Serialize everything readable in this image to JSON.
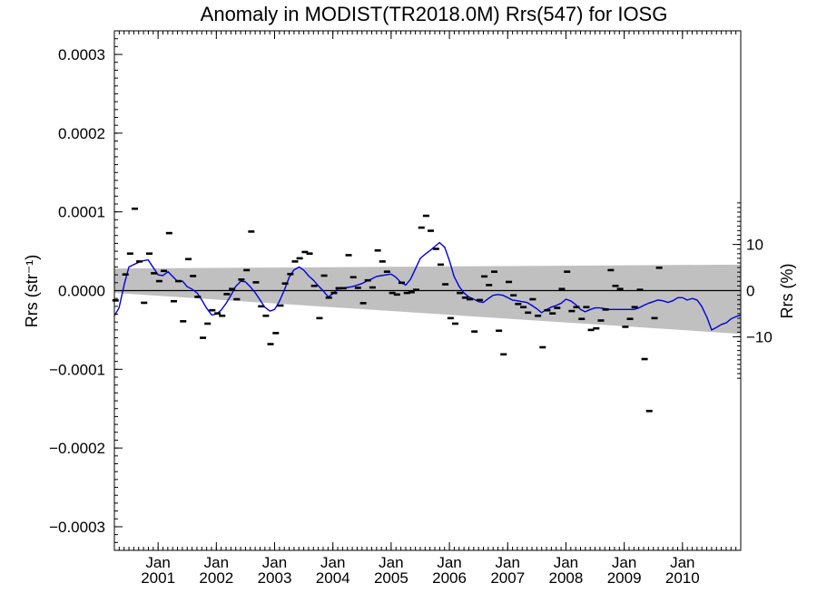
{
  "chart_data": {
    "type": "scatter",
    "title": "Anomaly in MODIST(TR2018.0M) Rrs(547) for IOSG",
    "ylabel_left": "Rrs (str⁻¹)",
    "ylabel_right": "Rrs (%)",
    "ylim": [
      -0.00033,
      0.00033
    ],
    "xlim": [
      2000.25,
      2011.0
    ],
    "grid": false,
    "yticks_left": [
      {
        "value": 0.0003,
        "label": "0.0003"
      },
      {
        "value": 0.0002,
        "label": "0.0002"
      },
      {
        "value": 0.0001,
        "label": "0.0001"
      },
      {
        "value": 0.0,
        "label": "0.0000"
      },
      {
        "value": -0.0001,
        "label": "−0.0001"
      },
      {
        "value": -0.0002,
        "label": "−0.0002"
      },
      {
        "value": -0.0003,
        "label": "−0.0003"
      }
    ],
    "yticks_right": [
      {
        "value": 10,
        "label": "10"
      },
      {
        "value": 0,
        "label": "0"
      },
      {
        "value": -10,
        "label": "−10"
      }
    ],
    "right_axis_scale_rrs_per_percent": 5.86e-06,
    "xticks": [
      {
        "value": 2001.0,
        "line1": "Jan",
        "line2": "2001"
      },
      {
        "value": 2002.0,
        "line1": "Jan",
        "line2": "2002"
      },
      {
        "value": 2003.0,
        "line1": "Jan",
        "line2": "2003"
      },
      {
        "value": 2004.0,
        "line1": "Jan",
        "line2": "2004"
      },
      {
        "value": 2005.0,
        "line1": "Jan",
        "line2": "2005"
      },
      {
        "value": 2006.0,
        "line1": "Jan",
        "line2": "2006"
      },
      {
        "value": 2007.0,
        "line1": "Jan",
        "line2": "2007"
      },
      {
        "value": 2008.0,
        "line1": "Jan",
        "line2": "2008"
      },
      {
        "value": 2009.0,
        "line1": "Jan",
        "line2": "2009"
      },
      {
        "value": 2010.0,
        "line1": "Jan",
        "line2": "2010"
      }
    ],
    "uncertainty_band": {
      "color": "#c0c0c0",
      "upper": [
        [
          2000.25,
          2.8e-05
        ],
        [
          2011.0,
          3.3e-05
        ]
      ],
      "lower": [
        [
          2000.25,
          -3e-06
        ],
        [
          2011.0,
          -5.5e-05
        ]
      ]
    },
    "series": [
      {
        "type": "points",
        "marker": "dash",
        "color": "#000000",
        "values": [
          [
            2000.27,
            -1.25e-05
          ],
          [
            2000.44,
            2.05e-05
          ],
          [
            2000.52,
            4.7e-05
          ],
          [
            2000.6,
            0.000104
          ],
          [
            2000.68,
            3.7e-05
          ],
          [
            2000.76,
            -1.55e-05
          ],
          [
            2000.85,
            4.7e-05
          ],
          [
            2000.93,
            2.2e-05
          ],
          [
            2001.02,
            1.2e-05
          ],
          [
            2001.1,
            2.5e-05
          ],
          [
            2001.19,
            7.3e-05
          ],
          [
            2001.27,
            -1.35e-05
          ],
          [
            2001.35,
            1.2e-05
          ],
          [
            2001.43,
            -3.9e-05
          ],
          [
            2001.52,
            4e-05
          ],
          [
            2001.6,
            1.85e-05
          ],
          [
            2001.68,
            -8e-06
          ],
          [
            2001.77,
            -6e-05
          ],
          [
            2001.85,
            -4.2e-05
          ],
          [
            2001.93,
            -2.5e-05
          ],
          [
            2002.02,
            -2.9e-05
          ],
          [
            2002.1,
            -3.2e-05
          ],
          [
            2002.18,
            -4.5e-06
          ],
          [
            2002.27,
            2e-06
          ],
          [
            2002.35,
            -1.1e-05
          ],
          [
            2002.43,
            1.4e-05
          ],
          [
            2002.52,
            2.6e-05
          ],
          [
            2002.6,
            7.5e-05
          ],
          [
            2002.68,
            1.05e-05
          ],
          [
            2002.77,
            -2e-05
          ],
          [
            2002.85,
            -3.2e-05
          ],
          [
            2002.93,
            -6.8e-05
          ],
          [
            2003.02,
            -5.4e-05
          ],
          [
            2003.1,
            -1.9e-05
          ],
          [
            2003.18,
            9e-06
          ],
          [
            2003.27,
            2.1e-05
          ],
          [
            2003.35,
            3.7e-05
          ],
          [
            2003.43,
            4.1e-05
          ],
          [
            2003.52,
            4.9e-05
          ],
          [
            2003.6,
            4.7e-05
          ],
          [
            2003.68,
            6e-06
          ],
          [
            2003.77,
            -3.5e-05
          ],
          [
            2003.85,
            1.9e-05
          ],
          [
            2003.93,
            -9e-06
          ],
          [
            2004.02,
            -3e-06
          ],
          [
            2004.1,
            3e-06
          ],
          [
            2004.18,
            3e-06
          ],
          [
            2004.27,
            4.5e-05
          ],
          [
            2004.35,
            1.7e-05
          ],
          [
            2004.43,
            3.5e-06
          ],
          [
            2004.52,
            -1.6e-05
          ],
          [
            2004.6,
            1.3e-05
          ],
          [
            2004.68,
            4e-06
          ],
          [
            2004.77,
            5.1e-05
          ],
          [
            2004.85,
            3.7e-05
          ],
          [
            2004.93,
            2.4e-05
          ],
          [
            2005.02,
            -3e-06
          ],
          [
            2005.1,
            -5e-06
          ],
          [
            2005.18,
            1e-05
          ],
          [
            2005.27,
            -3e-06
          ],
          [
            2005.35,
            -2e-06
          ],
          [
            2005.43,
            1e-06
          ],
          [
            2005.52,
            8e-05
          ],
          [
            2005.6,
            9.5e-05
          ],
          [
            2005.68,
            7.6e-05
          ],
          [
            2005.77,
            5.3e-05
          ],
          [
            2005.85,
            3.3e-05
          ],
          [
            2005.93,
            8e-06
          ],
          [
            2006.02,
            -3.5e-05
          ],
          [
            2006.1,
            -4.2e-05
          ],
          [
            2006.18,
            -3e-06
          ],
          [
            2006.27,
            -9e-06
          ],
          [
            2006.35,
            -1.1e-05
          ],
          [
            2006.43,
            -5.2e-05
          ],
          [
            2006.52,
            -1.2e-05
          ],
          [
            2006.6,
            1.8e-05
          ],
          [
            2006.68,
            7e-06
          ],
          [
            2006.77,
            2.4e-05
          ],
          [
            2006.85,
            -5.1e-05
          ],
          [
            2006.93,
            -8.1e-05
          ],
          [
            2007.02,
            1.1e-05
          ],
          [
            2007.1,
            -6e-06
          ],
          [
            2007.18,
            -1.7e-05
          ],
          [
            2007.27,
            -2.1e-05
          ],
          [
            2007.35,
            -2.8e-05
          ],
          [
            2007.43,
            -1.1e-05
          ],
          [
            2007.52,
            -3.2e-05
          ],
          [
            2007.6,
            -7.2e-05
          ],
          [
            2007.68,
            -2.5e-05
          ],
          [
            2007.77,
            -2.9e-05
          ],
          [
            2007.85,
            -2.2e-05
          ],
          [
            2007.93,
            2e-06
          ],
          [
            2008.02,
            2.4e-05
          ],
          [
            2008.1,
            -2.6e-05
          ],
          [
            2008.18,
            -2.1e-05
          ],
          [
            2008.27,
            -3.6e-05
          ],
          [
            2008.35,
            -2.1e-05
          ],
          [
            2008.43,
            -5e-05
          ],
          [
            2008.52,
            -4.8e-05
          ],
          [
            2008.6,
            -3.8e-05
          ],
          [
            2008.68,
            -2.4e-05
          ],
          [
            2008.77,
            2.6e-05
          ],
          [
            2008.85,
            6e-06
          ],
          [
            2008.93,
            2e-06
          ],
          [
            2009.02,
            -4.6e-05
          ],
          [
            2009.1,
            -3.6e-05
          ],
          [
            2009.18,
            -2.1e-05
          ],
          [
            2009.27,
            1e-06
          ],
          [
            2009.35,
            -8.7e-05
          ],
          [
            2009.43,
            -0.000153
          ],
          [
            2009.52,
            -3.5e-05
          ],
          [
            2009.6,
            2.9e-05
          ]
        ]
      },
      {
        "type": "line",
        "color": "#0000dd",
        "values": [
          [
            2000.25,
            -3.2e-05
          ],
          [
            2000.33,
            -2.2e-05
          ],
          [
            2000.42,
            8e-06
          ],
          [
            2000.5,
            3e-05
          ],
          [
            2000.58,
            3.3e-05
          ],
          [
            2000.67,
            3.6e-05
          ],
          [
            2000.75,
            3.8e-05
          ],
          [
            2000.83,
            3.9e-05
          ],
          [
            2000.92,
            2.9e-05
          ],
          [
            2001.0,
            2e-05
          ],
          [
            2001.08,
            1.9e-05
          ],
          [
            2001.17,
            2.4e-05
          ],
          [
            2001.25,
            1.8e-05
          ],
          [
            2001.33,
            1.2e-05
          ],
          [
            2001.42,
            1.2e-05
          ],
          [
            2001.5,
            5e-06
          ],
          [
            2001.58,
            2e-06
          ],
          [
            2001.67,
            -3e-06
          ],
          [
            2001.75,
            -1.2e-05
          ],
          [
            2001.83,
            -2.2e-05
          ],
          [
            2001.92,
            -3.1e-05
          ],
          [
            2002.0,
            -3e-05
          ],
          [
            2002.08,
            -2.5e-05
          ],
          [
            2002.17,
            -1.6e-05
          ],
          [
            2002.25,
            -6e-06
          ],
          [
            2002.33,
            5e-06
          ],
          [
            2002.42,
            1.2e-05
          ],
          [
            2002.5,
            1.1e-05
          ],
          [
            2002.58,
            5e-06
          ],
          [
            2002.67,
            -3e-06
          ],
          [
            2002.75,
            -1.2e-05
          ],
          [
            2002.83,
            -2.1e-05
          ],
          [
            2002.92,
            -2.6e-05
          ],
          [
            2003.0,
            -2.4e-05
          ],
          [
            2003.08,
            -1.4e-05
          ],
          [
            2003.17,
            1e-06
          ],
          [
            2003.25,
            1.7e-05
          ],
          [
            2003.33,
            2.6e-05
          ],
          [
            2003.42,
            3e-05
          ],
          [
            2003.5,
            2.6e-05
          ],
          [
            2003.58,
            1.9e-05
          ],
          [
            2003.67,
            1.3e-05
          ],
          [
            2003.75,
            6e-06
          ],
          [
            2003.83,
            0.0
          ],
          [
            2003.92,
            -8e-06
          ],
          [
            2004.0,
            -4e-06
          ],
          [
            2004.08,
            2e-06
          ],
          [
            2004.17,
            3e-06
          ],
          [
            2004.25,
            4e-06
          ],
          [
            2004.33,
            5e-06
          ],
          [
            2004.42,
            7e-06
          ],
          [
            2004.5,
            9e-06
          ],
          [
            2004.58,
            1.2e-05
          ],
          [
            2004.67,
            1.5e-05
          ],
          [
            2004.75,
            1.8e-05
          ],
          [
            2004.83,
            1.9e-05
          ],
          [
            2004.92,
            2e-05
          ],
          [
            2005.0,
            2.1e-05
          ],
          [
            2005.08,
            1.7e-05
          ],
          [
            2005.17,
            1e-05
          ],
          [
            2005.25,
            7e-06
          ],
          [
            2005.33,
            1.4e-05
          ],
          [
            2005.42,
            2.8e-05
          ],
          [
            2005.5,
            4.1e-05
          ],
          [
            2005.58,
            4.6e-05
          ],
          [
            2005.67,
            5.1e-05
          ],
          [
            2005.75,
            5.6e-05
          ],
          [
            2005.83,
            6.1e-05
          ],
          [
            2005.92,
            5.5e-05
          ],
          [
            2006.0,
            3.8e-05
          ],
          [
            2006.08,
            1.8e-05
          ],
          [
            2006.17,
            5e-06
          ],
          [
            2006.25,
            -3e-06
          ],
          [
            2006.33,
            -8e-06
          ],
          [
            2006.42,
            -1.1e-05
          ],
          [
            2006.5,
            -1.4e-05
          ],
          [
            2006.58,
            -1.5e-05
          ],
          [
            2006.67,
            -1e-05
          ],
          [
            2006.75,
            -6e-06
          ],
          [
            2006.83,
            -5e-06
          ],
          [
            2006.92,
            -6e-06
          ],
          [
            2007.0,
            -9e-06
          ],
          [
            2007.08,
            -1.2e-05
          ],
          [
            2007.17,
            -1.3e-05
          ],
          [
            2007.25,
            -1.4e-05
          ],
          [
            2007.33,
            -1.5e-05
          ],
          [
            2007.42,
            -1.9e-05
          ],
          [
            2007.5,
            -2.3e-05
          ],
          [
            2007.58,
            -2.8e-05
          ],
          [
            2007.67,
            -2.4e-05
          ],
          [
            2007.75,
            -2.1e-05
          ],
          [
            2007.83,
            -1.9e-05
          ],
          [
            2007.92,
            -1.6e-05
          ],
          [
            2008.0,
            -1.1e-05
          ],
          [
            2008.08,
            -1.3e-05
          ],
          [
            2008.17,
            -1.8e-05
          ],
          [
            2008.25,
            -2.4e-05
          ],
          [
            2008.33,
            -2.7e-05
          ],
          [
            2008.42,
            -2.4e-05
          ],
          [
            2008.5,
            -2.2e-05
          ],
          [
            2008.58,
            -2.2e-05
          ],
          [
            2008.67,
            -2.3e-05
          ],
          [
            2008.75,
            -2.4e-05
          ],
          [
            2008.83,
            -2.4e-05
          ],
          [
            2008.92,
            -2.4e-05
          ],
          [
            2009.0,
            -2.4e-05
          ],
          [
            2009.08,
            -2.4e-05
          ],
          [
            2009.17,
            -2.4e-05
          ],
          [
            2009.25,
            -2.2e-05
          ],
          [
            2009.33,
            -1.9e-05
          ],
          [
            2009.42,
            -1.6e-05
          ],
          [
            2009.5,
            -1.4e-05
          ],
          [
            2009.58,
            -1.2e-05
          ],
          [
            2009.67,
            -1.3e-05
          ],
          [
            2009.75,
            -1.5e-05
          ],
          [
            2009.83,
            -1.3e-05
          ],
          [
            2009.92,
            -9e-06
          ],
          [
            2010.0,
            -9e-06
          ],
          [
            2010.08,
            -1.2e-05
          ],
          [
            2010.17,
            -1e-05
          ],
          [
            2010.25,
            -1.2e-05
          ],
          [
            2010.33,
            -2e-05
          ],
          [
            2010.42,
            -3.4e-05
          ],
          [
            2010.5,
            -5e-05
          ],
          [
            2010.58,
            -4.7e-05
          ],
          [
            2010.67,
            -4.3e-05
          ],
          [
            2010.75,
            -4.1e-05
          ],
          [
            2010.83,
            -3.6e-05
          ],
          [
            2010.92,
            -3.3e-05
          ],
          [
            2011.0,
            -3.1e-05
          ]
        ]
      }
    ]
  }
}
